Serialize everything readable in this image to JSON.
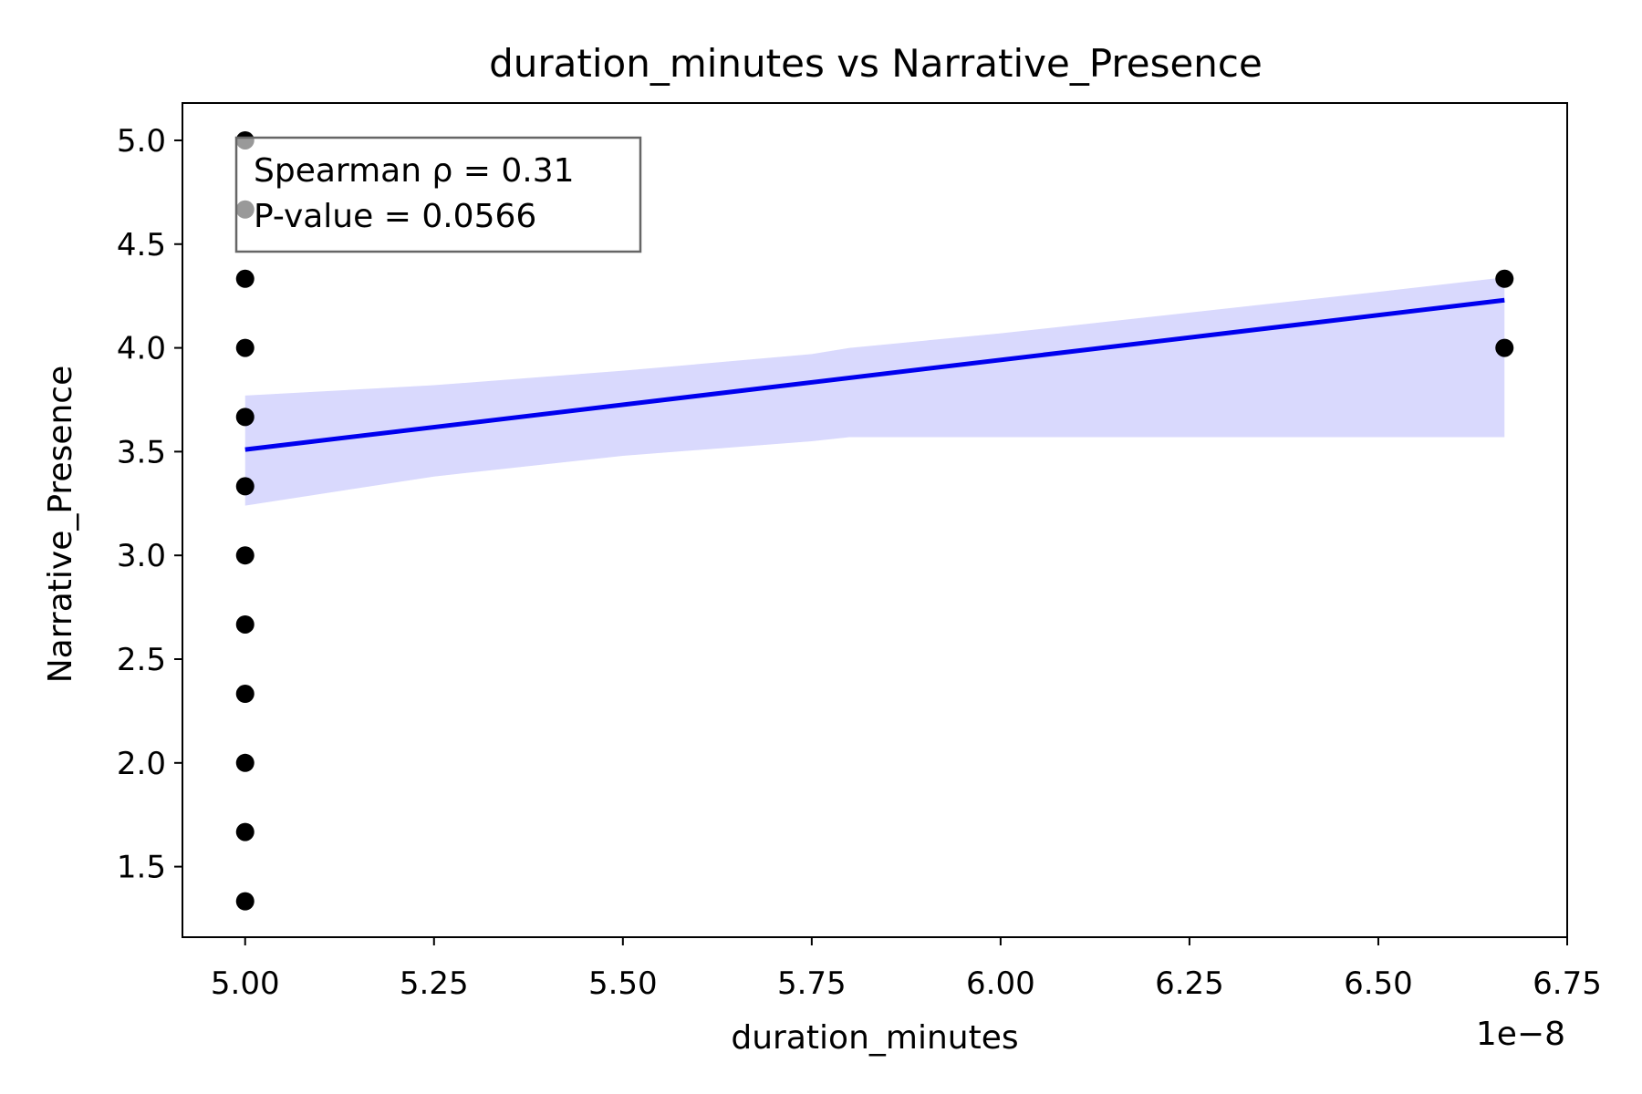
{
  "chart_data": {
    "type": "scatter",
    "title": "duration_minutes vs Narrative_Presence",
    "xlabel": "duration_minutes",
    "ylabel": "Narrative_Presence",
    "x_offset_text": "1e−8",
    "xlim": [
      4.917,
      6.75
    ],
    "ylim": [
      1.16,
      5.18
    ],
    "xticks": [
      5.0,
      5.25,
      5.5,
      5.75,
      6.0,
      6.25,
      6.5,
      6.75
    ],
    "xtick_labels": [
      "5.00",
      "5.25",
      "5.50",
      "5.75",
      "6.00",
      "6.25",
      "6.50",
      "6.75"
    ],
    "yticks": [
      1.5,
      2.0,
      2.5,
      3.0,
      3.5,
      4.0,
      4.5,
      5.0
    ],
    "ytick_labels": [
      "1.5",
      "2.0",
      "2.5",
      "3.0",
      "3.5",
      "4.0",
      "4.5",
      "5.0"
    ],
    "grid": false,
    "points": [
      {
        "x": 5.0,
        "y": 5.0
      },
      {
        "x": 5.0,
        "y": 4.667
      },
      {
        "x": 5.0,
        "y": 4.333
      },
      {
        "x": 5.0,
        "y": 4.0
      },
      {
        "x": 5.0,
        "y": 3.667
      },
      {
        "x": 5.0,
        "y": 3.333
      },
      {
        "x": 5.0,
        "y": 3.0
      },
      {
        "x": 5.0,
        "y": 2.667
      },
      {
        "x": 5.0,
        "y": 2.333
      },
      {
        "x": 5.0,
        "y": 2.0
      },
      {
        "x": 5.0,
        "y": 1.667
      },
      {
        "x": 5.0,
        "y": 1.333
      },
      {
        "x": 6.667,
        "y": 4.333
      },
      {
        "x": 6.667,
        "y": 4.0
      }
    ],
    "point_color": "#000000",
    "regression_line": {
      "x": [
        5.0,
        6.667
      ],
      "y": [
        3.51,
        4.23
      ],
      "color": "#0000ee"
    },
    "confidence_band": {
      "color": "#d9d9fd",
      "x": [
        5.0,
        5.25,
        5.5,
        5.75,
        5.8,
        6.0,
        6.25,
        6.5,
        6.667
      ],
      "upper": [
        3.77,
        3.82,
        3.89,
        3.97,
        4.0,
        4.07,
        4.17,
        4.27,
        4.34
      ],
      "lower": [
        3.24,
        3.38,
        3.48,
        3.55,
        3.57,
        3.57,
        3.57,
        3.57,
        3.57
      ]
    },
    "annotation": {
      "lines": [
        "Spearman ρ = 0.31",
        "P-value = 0.0566"
      ],
      "placement": "top-left",
      "border_color": "#666666"
    }
  }
}
